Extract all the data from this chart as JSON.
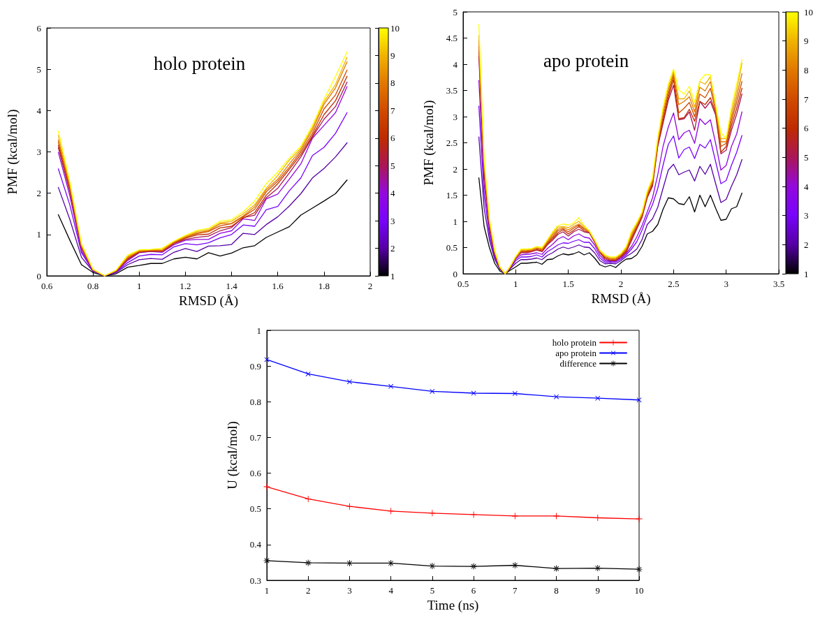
{
  "chart_data": [
    {
      "type": "line",
      "title": "holo protein",
      "xlabel": "RMSD (Å)",
      "ylabel": "PMF (kcal/mol)",
      "marker": "none",
      "xlim": [
        0.6,
        2
      ],
      "xticks": [
        0.6,
        0.8,
        1,
        1.2,
        1.4,
        1.6,
        1.8,
        2
      ],
      "ylim": [
        0,
        6
      ],
      "yticks": [
        0,
        1,
        2,
        3,
        4,
        5,
        6
      ],
      "clim": [
        1,
        10
      ],
      "cticks": [
        1,
        2,
        3,
        4,
        5,
        6,
        7,
        8,
        9,
        10
      ],
      "x": [
        0.65,
        0.7,
        0.75,
        0.8,
        0.85,
        0.9,
        0.95,
        1,
        1.05,
        1.1,
        1.15,
        1.2,
        1.25,
        1.3,
        1.35,
        1.4,
        1.45,
        1.5,
        1.55,
        1.6,
        1.65,
        1.7,
        1.75,
        1.8,
        1.85,
        1.9
      ],
      "series": [
        {
          "color": "#000000",
          "values": [
            1.48,
            0.86,
            0.27,
            0.08,
            0,
            0.05,
            0.21,
            0.25,
            0.3,
            0.3,
            0.41,
            0.45,
            0.41,
            0.56,
            0.48,
            0.55,
            0.68,
            0.73,
            0.93,
            1.06,
            1.19,
            1.47,
            1.64,
            1.81,
            1.99,
            2.32
          ]
        },
        {
          "color": "#5500a4",
          "values": [
            2.14,
            1.36,
            0.45,
            0.11,
            0,
            0.08,
            0.27,
            0.39,
            0.42,
            0.4,
            0.57,
            0.66,
            0.59,
            0.72,
            0.73,
            0.76,
            1.03,
            1.0,
            1.24,
            1.43,
            1.69,
            1.99,
            2.37,
            2.6,
            2.88,
            3.22
          ]
        },
        {
          "color": "#7803fb",
          "values": [
            2.59,
            1.71,
            0.56,
            0.12,
            0,
            0.09,
            0.32,
            0.48,
            0.52,
            0.51,
            0.7,
            0.78,
            0.75,
            0.8,
            0.92,
            1.0,
            1.23,
            1.2,
            1.6,
            1.68,
            2.06,
            2.37,
            2.91,
            3.11,
            3.45,
            3.95
          ]
        },
        {
          "color": "#9309dd",
          "values": [
            2.99,
            1.93,
            0.61,
            0.13,
            0,
            0.1,
            0.37,
            0.56,
            0.59,
            0.57,
            0.75,
            0.86,
            0.88,
            0.88,
            1.03,
            1.09,
            1.38,
            1.34,
            1.86,
            1.98,
            2.34,
            2.71,
            3.33,
            3.64,
            3.95,
            4.58
          ]
        },
        {
          "color": "#aa1657",
          "values": [
            3.1,
            2.03,
            0.67,
            0.14,
            0,
            0.11,
            0.4,
            0.57,
            0.6,
            0.59,
            0.78,
            0.88,
            0.93,
            0.96,
            1.09,
            1.17,
            1.41,
            1.47,
            1.89,
            2.12,
            2.49,
            2.88,
            3.36,
            3.79,
            4.1,
            4.69
          ]
        },
        {
          "color": "#be2b00",
          "values": [
            3.16,
            2.09,
            0.69,
            0.14,
            0,
            0.12,
            0.41,
            0.58,
            0.6,
            0.6,
            0.79,
            0.91,
            0.99,
            1.01,
            1.16,
            1.2,
            1.4,
            1.53,
            1.95,
            2.23,
            2.58,
            2.94,
            3.39,
            3.9,
            4.24,
            4.83
          ]
        },
        {
          "color": "#d04b00",
          "values": [
            3.24,
            2.14,
            0.71,
            0.15,
            0,
            0.12,
            0.43,
            0.59,
            0.61,
            0.61,
            0.8,
            0.93,
            1.02,
            1.07,
            1.21,
            1.26,
            1.43,
            1.61,
            2.03,
            2.29,
            2.63,
            3.0,
            3.45,
            4.04,
            4.38,
            4.98
          ]
        },
        {
          "color": "#e17800",
          "values": [
            3.29,
            2.17,
            0.73,
            0.15,
            0,
            0.13,
            0.45,
            0.6,
            0.62,
            0.62,
            0.82,
            0.94,
            1.04,
            1.09,
            1.26,
            1.27,
            1.45,
            1.67,
            2.08,
            2.34,
            2.71,
            3.05,
            3.53,
            4.15,
            4.55,
            5.18
          ]
        },
        {
          "color": "#f0b300",
          "values": [
            3.4,
            2.22,
            0.75,
            0.15,
            0,
            0.13,
            0.47,
            0.61,
            0.63,
            0.64,
            0.83,
            0.96,
            1.07,
            1.12,
            1.28,
            1.32,
            1.5,
            1.72,
            2.12,
            2.43,
            2.8,
            3.09,
            3.59,
            4.21,
            4.63,
            5.29
          ]
        },
        {
          "color": "#ffff00",
          "values": [
            3.51,
            2.27,
            0.78,
            0.16,
            0,
            0.14,
            0.5,
            0.63,
            0.64,
            0.67,
            0.84,
            0.98,
            1.1,
            1.15,
            1.32,
            1.36,
            1.55,
            1.81,
            2.23,
            2.51,
            2.85,
            3.14,
            3.64,
            4.27,
            4.83,
            5.42
          ]
        }
      ]
    },
    {
      "type": "line",
      "title": "apo protein",
      "xlabel": "RMSD (Å)",
      "ylabel": "PMF (kcal/mol)",
      "marker": "none",
      "xlim": [
        0.5,
        3.5
      ],
      "xticks": [
        0.5,
        1,
        1.5,
        2,
        2.5,
        3,
        3.5
      ],
      "ylim": [
        0,
        5
      ],
      "yticks": [
        0,
        0.5,
        1,
        1.5,
        2,
        2.5,
        3,
        3.5,
        4,
        4.5,
        5
      ],
      "clim": [
        1,
        10
      ],
      "cticks": [
        1,
        2,
        3,
        4,
        5,
        6,
        7,
        8,
        9,
        10
      ],
      "x": [
        0.65,
        0.7,
        0.75,
        0.8,
        0.85,
        0.9,
        0.95,
        1,
        1.05,
        1.1,
        1.15,
        1.2,
        1.25,
        1.3,
        1.35,
        1.4,
        1.45,
        1.5,
        1.55,
        1.6,
        1.65,
        1.7,
        1.75,
        1.8,
        1.85,
        1.9,
        1.95,
        2,
        2.05,
        2.1,
        2.15,
        2.2,
        2.25,
        2.3,
        2.35,
        2.4,
        2.45,
        2.5,
        2.55,
        2.6,
        2.65,
        2.7,
        2.75,
        2.8,
        2.85,
        2.9,
        2.95,
        3,
        3.05,
        3.1,
        3.15
      ],
      "series": [
        {
          "color": "#000000",
          "values": [
            1.83,
            0.9,
            0.5,
            0.2,
            0.05,
            0,
            0.07,
            0.13,
            0.2,
            0.2,
            0.21,
            0.22,
            0.18,
            0.27,
            0.28,
            0.34,
            0.38,
            0.36,
            0.38,
            0.42,
            0.36,
            0.4,
            0.3,
            0.17,
            0.13,
            0.16,
            0.12,
            0.21,
            0.28,
            0.29,
            0.36,
            0.52,
            0.76,
            0.81,
            0.94,
            1.23,
            1.45,
            1.43,
            1.34,
            1.32,
            1.47,
            1.18,
            1.5,
            1.28,
            1.5,
            1.25,
            1.02,
            1.04,
            1.24,
            1.28,
            1.54
          ]
        },
        {
          "color": "#5500a4",
          "values": [
            2.61,
            1.25,
            0.65,
            0.28,
            0.08,
            0,
            0.1,
            0.2,
            0.27,
            0.27,
            0.28,
            0.3,
            0.27,
            0.35,
            0.4,
            0.47,
            0.51,
            0.48,
            0.51,
            0.55,
            0.51,
            0.5,
            0.4,
            0.25,
            0.19,
            0.2,
            0.19,
            0.25,
            0.33,
            0.39,
            0.47,
            0.65,
            0.94,
            1.05,
            1.27,
            1.63,
            1.98,
            2.09,
            1.89,
            1.94,
            1.98,
            1.77,
            2.05,
            1.9,
            2.09,
            1.72,
            1.36,
            1.42,
            1.67,
            1.89,
            2.18
          ]
        },
        {
          "color": "#7803fb",
          "values": [
            3.2,
            1.5,
            0.75,
            0.32,
            0.1,
            0,
            0.12,
            0.25,
            0.32,
            0.32,
            0.33,
            0.36,
            0.32,
            0.42,
            0.48,
            0.55,
            0.59,
            0.58,
            0.62,
            0.65,
            0.6,
            0.6,
            0.48,
            0.3,
            0.22,
            0.23,
            0.22,
            0.28,
            0.36,
            0.47,
            0.61,
            0.83,
            1.1,
            1.32,
            1.63,
            2.07,
            2.47,
            2.63,
            2.21,
            2.37,
            2.42,
            2.2,
            2.47,
            2.4,
            2.56,
            2.14,
            1.72,
            1.78,
            2.07,
            2.32,
            2.64
          ]
        },
        {
          "color": "#9309dd",
          "values": [
            3.69,
            1.7,
            0.85,
            0.35,
            0.11,
            0,
            0.13,
            0.28,
            0.36,
            0.37,
            0.38,
            0.4,
            0.37,
            0.48,
            0.56,
            0.66,
            0.71,
            0.65,
            0.72,
            0.76,
            0.7,
            0.68,
            0.55,
            0.35,
            0.25,
            0.25,
            0.24,
            0.3,
            0.39,
            0.52,
            0.7,
            0.92,
            1.18,
            1.45,
            1.89,
            2.43,
            2.8,
            3.07,
            2.56,
            2.69,
            2.74,
            2.49,
            2.96,
            2.85,
            2.94,
            2.49,
            1.98,
            2.07,
            2.43,
            2.67,
            3.09
          ]
        },
        {
          "color": "#aa1657",
          "values": [
            4.15,
            1.9,
            0.9,
            0.38,
            0.11,
            0,
            0.13,
            0.3,
            0.4,
            0.4,
            0.42,
            0.45,
            0.42,
            0.55,
            0.64,
            0.75,
            0.8,
            0.72,
            0.8,
            0.85,
            0.8,
            0.78,
            0.6,
            0.4,
            0.28,
            0.25,
            0.25,
            0.32,
            0.41,
            0.63,
            0.85,
            1.07,
            1.45,
            1.67,
            2.43,
            2.87,
            3.31,
            3.6,
            2.94,
            2.96,
            3.09,
            2.74,
            3.29,
            3.16,
            3.29,
            3.03,
            2.29,
            2.36,
            2.74,
            3.05,
            3.43
          ]
        },
        {
          "color": "#be2b00",
          "values": [
            4.25,
            1.96,
            0.93,
            0.39,
            0.11,
            0,
            0.13,
            0.31,
            0.42,
            0.42,
            0.43,
            0.46,
            0.44,
            0.57,
            0.67,
            0.78,
            0.84,
            0.76,
            0.83,
            0.9,
            0.82,
            0.79,
            0.61,
            0.41,
            0.3,
            0.26,
            0.26,
            0.33,
            0.43,
            0.67,
            0.88,
            1.09,
            1.48,
            1.7,
            2.46,
            2.93,
            3.37,
            3.71,
            2.96,
            2.98,
            3.14,
            2.91,
            3.29,
            3.23,
            3.36,
            3.07,
            2.32,
            2.43,
            2.83,
            3.16,
            3.54
          ]
        },
        {
          "color": "#d04b00",
          "values": [
            4.35,
            2.02,
            0.96,
            0.41,
            0.12,
            0,
            0.14,
            0.31,
            0.43,
            0.43,
            0.44,
            0.48,
            0.45,
            0.59,
            0.7,
            0.82,
            0.86,
            0.8,
            0.87,
            0.93,
            0.85,
            0.8,
            0.62,
            0.42,
            0.31,
            0.28,
            0.28,
            0.35,
            0.45,
            0.7,
            0.9,
            1.11,
            1.5,
            1.73,
            2.5,
            2.99,
            3.43,
            3.78,
            3.07,
            3.16,
            3.27,
            3.0,
            3.43,
            3.36,
            3.54,
            3.11,
            2.43,
            2.49,
            2.92,
            3.28,
            3.67
          ]
        },
        {
          "color": "#e17800",
          "values": [
            4.45,
            2.08,
            0.99,
            0.42,
            0.12,
            0,
            0.14,
            0.32,
            0.44,
            0.44,
            0.46,
            0.49,
            0.47,
            0.61,
            0.74,
            0.85,
            0.88,
            0.84,
            0.9,
            0.95,
            0.87,
            0.8,
            0.63,
            0.43,
            0.33,
            0.29,
            0.29,
            0.36,
            0.48,
            0.74,
            0.93,
            1.14,
            1.53,
            1.77,
            2.53,
            3.06,
            3.5,
            3.82,
            3.23,
            3.29,
            3.38,
            3.09,
            3.56,
            3.49,
            3.67,
            3.15,
            2.52,
            2.52,
            3.0,
            3.39,
            3.82
          ]
        },
        {
          "color": "#f0b300",
          "values": [
            4.55,
            2.14,
            1.02,
            0.44,
            0.13,
            0,
            0.15,
            0.32,
            0.46,
            0.46,
            0.47,
            0.51,
            0.48,
            0.63,
            0.77,
            0.89,
            0.9,
            0.88,
            0.94,
            1.0,
            0.9,
            0.81,
            0.64,
            0.44,
            0.34,
            0.31,
            0.31,
            0.38,
            0.5,
            0.77,
            0.95,
            1.16,
            1.55,
            1.8,
            2.57,
            3.12,
            3.56,
            3.87,
            3.34,
            3.34,
            3.49,
            3.18,
            3.67,
            3.62,
            3.76,
            3.19,
            2.58,
            2.58,
            3.09,
            3.51,
            4.02
          ]
        },
        {
          "color": "#ffff00",
          "values": [
            4.76,
            2.2,
            1.05,
            0.45,
            0.13,
            0,
            0.15,
            0.33,
            0.47,
            0.47,
            0.48,
            0.52,
            0.5,
            0.65,
            0.8,
            0.92,
            0.95,
            0.93,
            0.97,
            1.07,
            0.92,
            0.82,
            0.65,
            0.45,
            0.36,
            0.32,
            0.32,
            0.39,
            0.52,
            0.81,
            0.98,
            1.18,
            1.58,
            1.83,
            2.6,
            3.18,
            3.62,
            3.91,
            3.51,
            3.43,
            3.58,
            3.27,
            3.69,
            3.8,
            3.8,
            3.23,
            2.69,
            2.58,
            3.18,
            3.62,
            4.09
          ]
        }
      ]
    },
    {
      "type": "line",
      "xlabel": "Time (ns)",
      "ylabel": "U (kcal/mol)",
      "legend": "top right",
      "xlim": [
        1,
        10
      ],
      "xticks": [
        1,
        2,
        3,
        4,
        5,
        6,
        7,
        8,
        9,
        10
      ],
      "ylim": [
        0.3,
        1
      ],
      "yticks": [
        0.3,
        0.4,
        0.5,
        0.6,
        0.7,
        0.8,
        0.9,
        1
      ],
      "x": [
        1,
        2,
        3,
        4,
        5,
        6,
        7,
        8,
        9,
        10
      ],
      "series": [
        {
          "name": "holo protein",
          "color": "#ff0000",
          "marker": "plus",
          "values": [
            0.562,
            0.528,
            0.507,
            0.494,
            0.488,
            0.484,
            0.48,
            0.48,
            0.475,
            0.472
          ]
        },
        {
          "name": "apo protein",
          "color": "#0000ff",
          "marker": "cross",
          "values": [
            0.918,
            0.878,
            0.856,
            0.843,
            0.829,
            0.824,
            0.823,
            0.814,
            0.81,
            0.805
          ]
        },
        {
          "name": "difference",
          "color": "#000000",
          "marker": "star",
          "values": [
            0.355,
            0.349,
            0.348,
            0.348,
            0.34,
            0.339,
            0.342,
            0.333,
            0.334,
            0.331
          ]
        }
      ]
    }
  ]
}
